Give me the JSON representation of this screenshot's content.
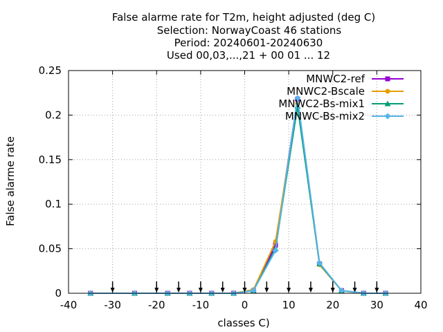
{
  "chart_data": {
    "type": "line",
    "title_lines": [
      "False alarme rate  for T2m, height adjusted (deg C)",
      "Selection: NorwayCoast     46 stations",
      "Period: 20240601-20240630",
      "Used 00,03,...,21 + 00 01 ... 12"
    ],
    "xlabel": "classes C)",
    "ylabel": "False alarme rate",
    "xlim": [
      -40,
      40
    ],
    "ylim": [
      0,
      0.25
    ],
    "x_ticks": [
      -40,
      -30,
      -20,
      -10,
      0,
      10,
      20,
      30,
      40
    ],
    "x_tick_labels": [
      "-40",
      "-30",
      "-20",
      "-10",
      "0",
      "10",
      "20",
      "30",
      "40"
    ],
    "y_ticks": [
      0,
      0.05,
      0.1,
      0.15,
      0.2,
      0.25
    ],
    "y_tick_labels": [
      "0",
      "0.05",
      "0.1",
      "0.15",
      "0.2",
      "0.25"
    ],
    "grid": true,
    "legend_position": "top-right",
    "x": [
      -35,
      -25,
      -17.5,
      -12.5,
      -7.5,
      -2.5,
      2,
      7,
      12,
      17,
      22,
      27,
      32
    ],
    "series": [
      {
        "name": "MNWC2-ref",
        "color": "#9400d3",
        "marker": "square",
        "values": [
          0,
          0,
          0,
          0,
          0,
          0,
          0.003,
          0.054,
          0.218,
          0.033,
          0.003,
          0,
          0
        ]
      },
      {
        "name": "MNWC2-Bscale",
        "color": "#e69f00",
        "marker": "circle",
        "values": [
          0,
          0,
          0,
          0,
          0,
          0,
          0.004,
          0.058,
          0.213,
          0.032,
          0.003,
          0,
          0
        ]
      },
      {
        "name": "MNWC2-Bs-mix1",
        "color": "#009e73",
        "marker": "triangle",
        "values": [
          0,
          0,
          0,
          0,
          0,
          0,
          0.003,
          0.05,
          0.21,
          0.033,
          0.003,
          0,
          0
        ]
      },
      {
        "name": "MNWC-Bs-mix2",
        "color": "#56b4e9",
        "marker": "diamond",
        "values": [
          0,
          0,
          0,
          0,
          0,
          0,
          0.003,
          0.048,
          0.219,
          0.034,
          0.003,
          0,
          0
        ]
      }
    ],
    "arrow_x": [
      -30,
      -20,
      -15,
      -10,
      -5,
      0,
      5,
      10,
      15,
      20,
      25,
      30
    ]
  }
}
